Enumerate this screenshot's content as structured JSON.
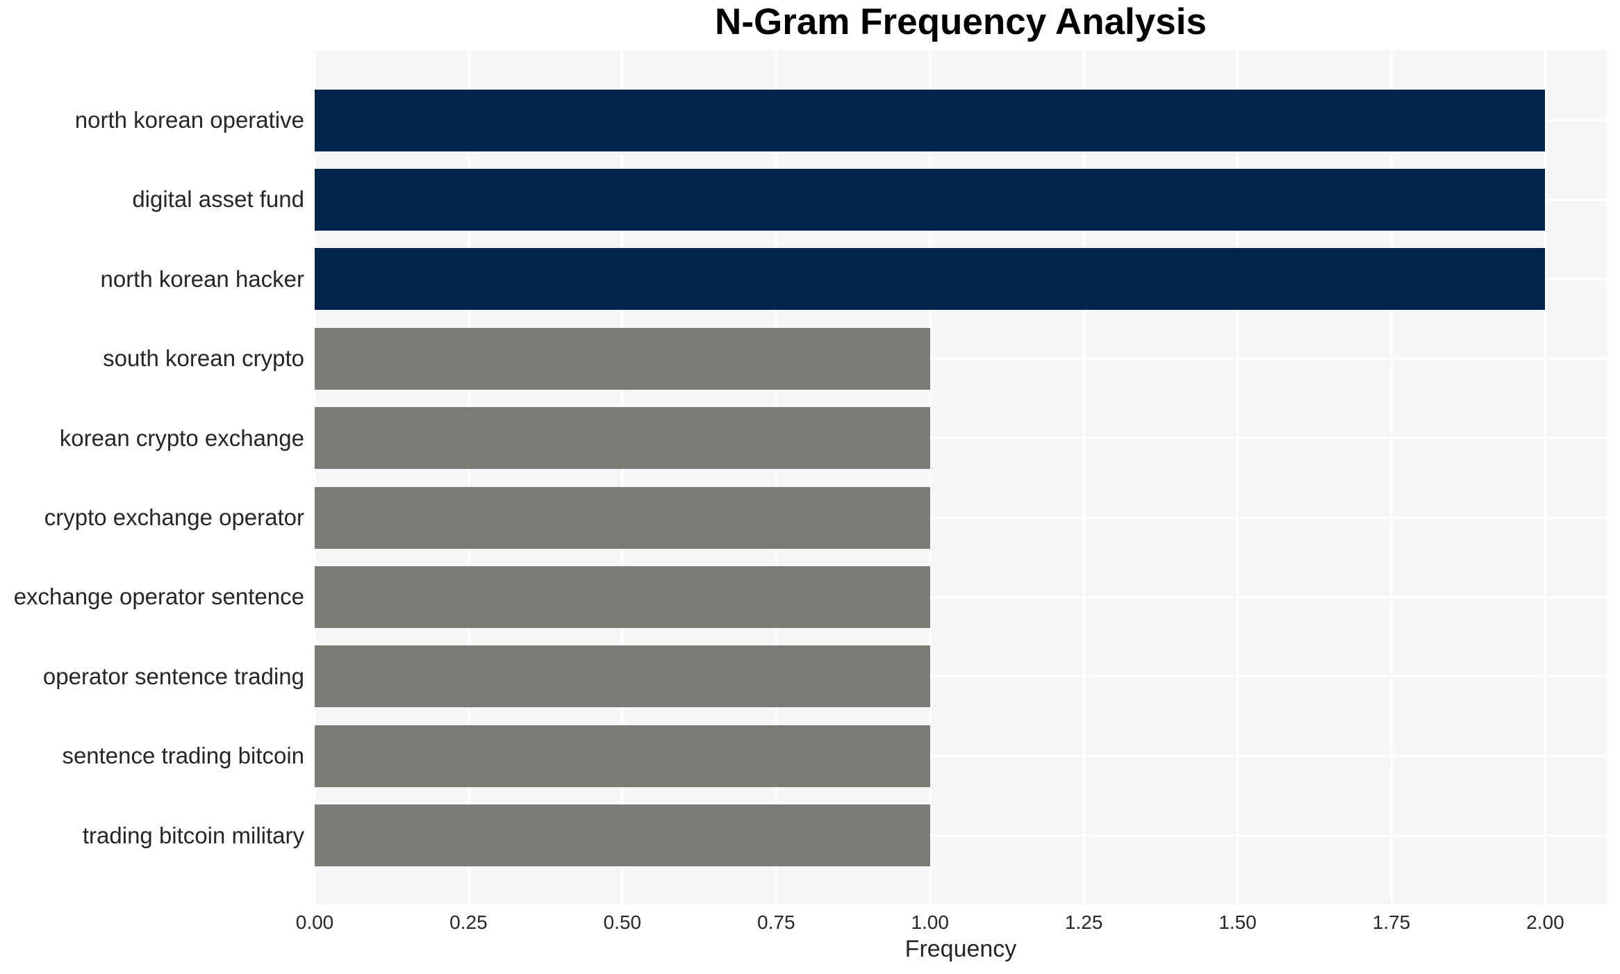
{
  "page": {
    "background": "#ffffff"
  },
  "colors": {
    "bar_high": "#02234c",
    "bar_low": "#7b7a75",
    "plot_bg": "#f6f6f8",
    "grid": "#ffffff",
    "tick_text": "#262626",
    "title_text": "#000000"
  },
  "chart_data": {
    "type": "bar",
    "orientation": "horizontal",
    "title": "N-Gram Frequency Analysis",
    "xlabel": "Frequency",
    "ylabel": "",
    "categories": [
      "north korean operative",
      "digital asset fund",
      "north korean hacker",
      "south korean crypto",
      "korean crypto exchange",
      "crypto exchange operator",
      "exchange operator sentence",
      "operator sentence trading",
      "sentence trading bitcoin",
      "trading bitcoin military"
    ],
    "values": [
      2,
      2,
      2,
      1,
      1,
      1,
      1,
      1,
      1,
      1
    ],
    "bar_colors": [
      "#02234c",
      "#02234c",
      "#02234c",
      "#7b7a75",
      "#7b7a75",
      "#7b7a75",
      "#7b7a75",
      "#7b7a75",
      "#7b7a75",
      "#7b7a75"
    ],
    "xlim": [
      0,
      2.1
    ],
    "xticks": [
      0,
      0.25,
      0.5,
      0.75,
      1.0,
      1.25,
      1.5,
      1.75,
      2.0
    ],
    "xtick_labels": [
      "0.00",
      "0.25",
      "0.50",
      "0.75",
      "1.00",
      "1.25",
      "1.50",
      "1.75",
      "2.00"
    ],
    "grid": true,
    "grid_axis": "both",
    "legend": false
  }
}
